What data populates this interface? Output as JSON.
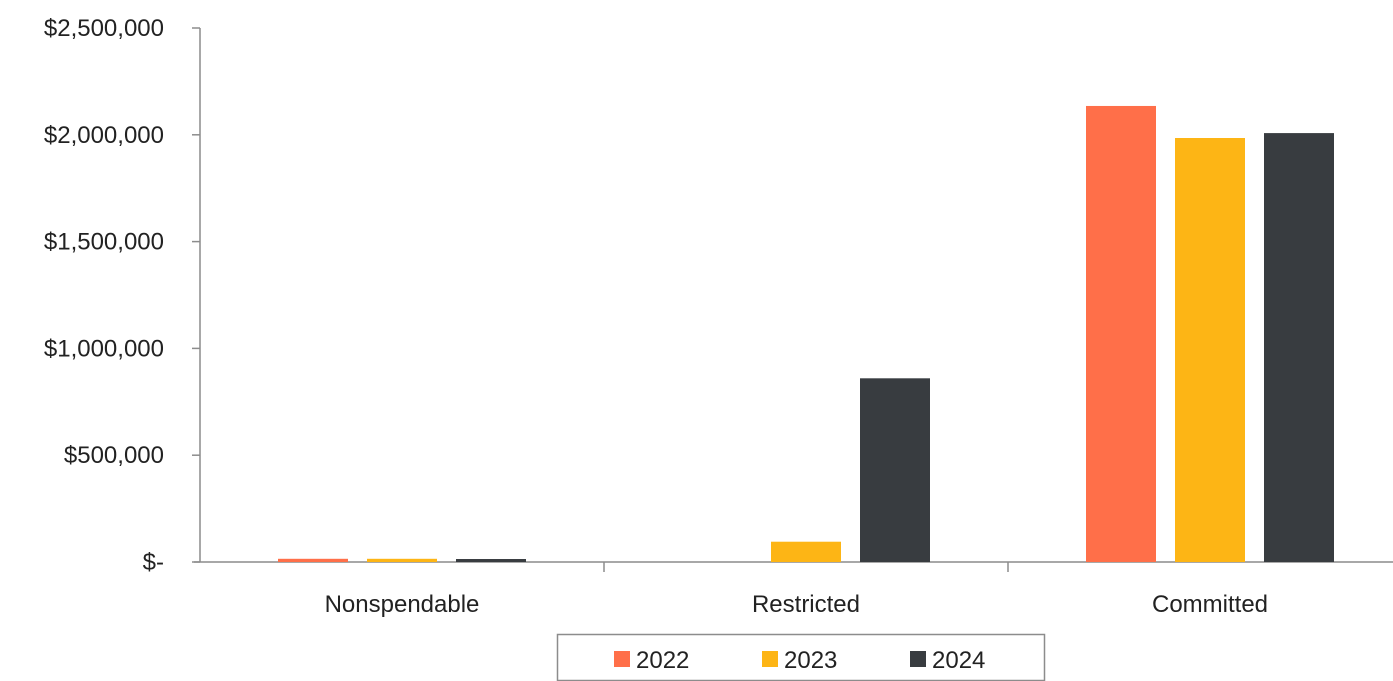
{
  "chart_data": {
    "type": "bar",
    "categories": [
      "Nonspendable",
      "Restricted",
      "Committed"
    ],
    "series": [
      {
        "name": "2022",
        "color": "#FF6F49",
        "values": [
          15000,
          0,
          2135000
        ]
      },
      {
        "name": "2023",
        "color": "#FDB515",
        "values": [
          15000,
          95000,
          1985000
        ]
      },
      {
        "name": "2024",
        "color": "#383C40",
        "values": [
          14000,
          860000,
          2008000
        ]
      }
    ],
    "yticks": [
      {
        "value": 0,
        "label": "$-"
      },
      {
        "value": 500000,
        "label": "$500,000"
      },
      {
        "value": 1000000,
        "label": "$1,000,000"
      },
      {
        "value": 1500000,
        "label": "$1,500,000"
      },
      {
        "value": 2000000,
        "label": "$2,000,000"
      },
      {
        "value": 2500000,
        "label": "$2,500,000"
      }
    ],
    "ylim": [
      0,
      2500000
    ],
    "title": "",
    "xlabel": "",
    "ylabel": "",
    "grid": false,
    "legend": "bottom"
  }
}
